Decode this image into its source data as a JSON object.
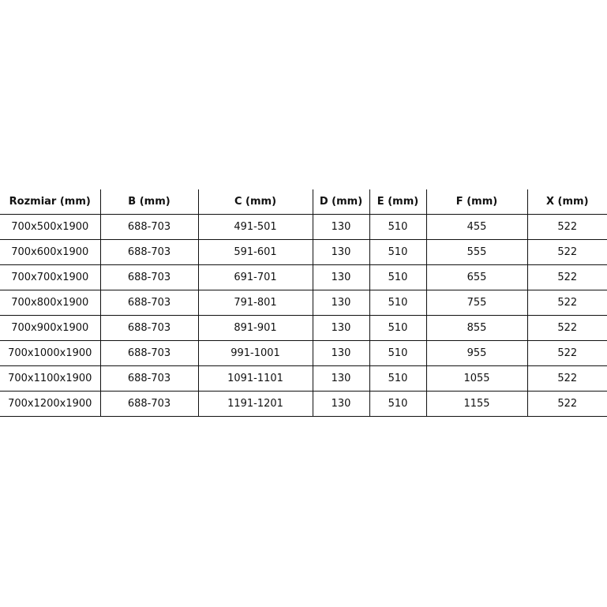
{
  "table": {
    "headers": [
      "Rozmiar (mm)",
      "B (mm)",
      "C (mm)",
      "D (mm)",
      "E (mm)",
      "F (mm)",
      "X (mm)"
    ],
    "rows": [
      [
        "700x500x1900",
        "688-703",
        "491-501",
        "130",
        "510",
        "455",
        "522"
      ],
      [
        "700x600x1900",
        "688-703",
        "591-601",
        "130",
        "510",
        "555",
        "522"
      ],
      [
        "700x700x1900",
        "688-703",
        "691-701",
        "130",
        "510",
        "655",
        "522"
      ],
      [
        "700x800x1900",
        "688-703",
        "791-801",
        "130",
        "510",
        "755",
        "522"
      ],
      [
        "700x900x1900",
        "688-703",
        "891-901",
        "130",
        "510",
        "855",
        "522"
      ],
      [
        "700x1000x1900",
        "688-703",
        "991-1001",
        "130",
        "510",
        "955",
        "522"
      ],
      [
        "700x1100x1900",
        "688-703",
        "1091-1101",
        "130",
        "510",
        "1055",
        "522"
      ],
      [
        "700x1200x1900",
        "688-703",
        "1191-1201",
        "130",
        "510",
        "1155",
        "522"
      ]
    ]
  }
}
